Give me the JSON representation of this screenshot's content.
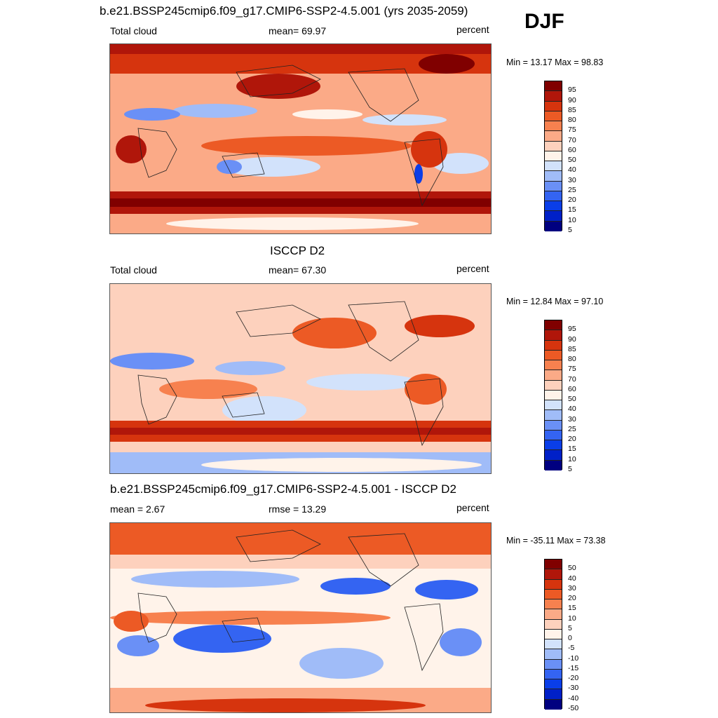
{
  "season": "DJF",
  "colors": {
    "abs_scale": [
      "#000080",
      "#0020c8",
      "#0a3ee8",
      "#3464f2",
      "#6a90f6",
      "#a0bcf8",
      "#d2e2fb",
      "#fff3ea",
      "#fdd1bd",
      "#fbaa87",
      "#f7814f",
      "#ec5a25",
      "#d6340e",
      "#b0160a",
      "#800000"
    ],
    "diff_scale": [
      "#000080",
      "#0020c8",
      "#0a3ee8",
      "#3464f2",
      "#6a90f6",
      "#a0bcf8",
      "#d2e2fb",
      "#fff3ea",
      "#fdd1bd",
      "#fbaa87",
      "#f7814f",
      "#ec5a25",
      "#d6340e",
      "#b0160a",
      "#800000"
    ]
  },
  "panels": [
    {
      "title": "b.e21.BSSP245cmip6.f09_g17.CMIP6-SSP2-4.5.001 (yrs 2035-2059)",
      "left_label": "Total cloud",
      "center_label": "mean=  69.97",
      "right_label": "percent",
      "minmax": "Min =  13.17 Max =  98.83",
      "colorbar_labels": [
        "95",
        "90",
        "85",
        "80",
        "75",
        "70",
        "60",
        "50",
        "40",
        "30",
        "25",
        "20",
        "15",
        "10",
        "5"
      ]
    },
    {
      "title": "ISCCP D2",
      "left_label": "Total cloud",
      "center_label": "mean=  67.30",
      "right_label": "percent",
      "minmax": "Min =  12.84 Max =  97.10",
      "colorbar_labels": [
        "95",
        "90",
        "85",
        "80",
        "75",
        "70",
        "60",
        "50",
        "40",
        "30",
        "25",
        "20",
        "15",
        "10",
        "5"
      ]
    },
    {
      "title": "b.e21.BSSP245cmip6.f09_g17.CMIP6-SSP2-4.5.001 - ISCCP D2",
      "left_label": "mean =   2.67",
      "center_label": "rmse =  13.29",
      "right_label": "percent",
      "minmax": "Min = -35.11 Max =  73.38",
      "colorbar_labels": [
        "50",
        "40",
        "30",
        "20",
        "15",
        "10",
        "5",
        "0",
        "-5",
        "-10",
        "-15",
        "-20",
        "-30",
        "-40",
        "-50"
      ]
    }
  ]
}
